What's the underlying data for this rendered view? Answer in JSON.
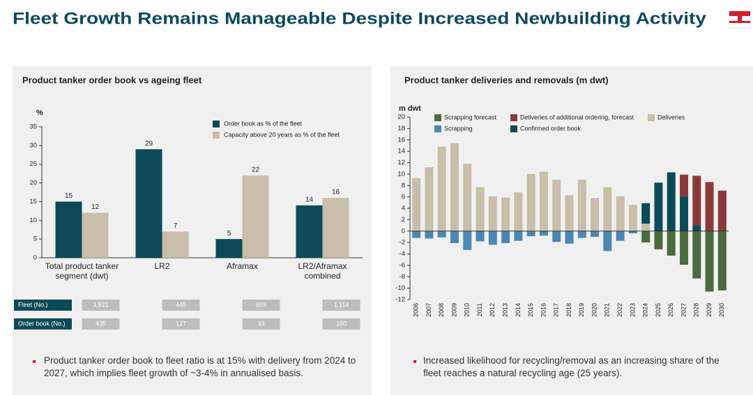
{
  "title": "Fleet Growth Remains Manageable Despite Increased Newbuilding Activity",
  "chart_data": [
    {
      "type": "bar",
      "title": "Product tanker order book vs ageing fleet",
      "ylabel": "%",
      "categories": [
        "Total product tanker segment (dwt)",
        "LR2",
        "Aframax",
        "LR2/Aframax combined"
      ],
      "series": [
        {
          "name": "Order book as % of the fleet",
          "color": "#0d4a57",
          "values": [
            15,
            29,
            5,
            14
          ]
        },
        {
          "name": "Capacity above 20 years as % of the fleet",
          "color": "#c8bea9",
          "values": [
            12,
            7,
            22,
            16
          ]
        }
      ],
      "ylim": [
        0,
        35
      ],
      "yticks": [
        0,
        5,
        10,
        15,
        20,
        25,
        30,
        35
      ],
      "grid": false,
      "legend": "top-right"
    },
    {
      "type": "stacked_bar",
      "title": "Product tanker deliveries and removals (m dwt)",
      "ylabel": "m dwt",
      "categories": [
        "2006",
        "2007",
        "2008",
        "2009",
        "2010",
        "2011",
        "2012",
        "2013",
        "2014",
        "2015",
        "2016",
        "2017",
        "2018",
        "2019",
        "2020",
        "2021",
        "2022",
        "2023",
        "2024",
        "2025",
        "2026",
        "2027",
        "2028",
        "2029",
        "2030"
      ],
      "series": [
        {
          "name": "Scrapping forecast",
          "color": "#4b6b3f",
          "values": [
            null,
            null,
            null,
            null,
            null,
            null,
            null,
            null,
            null,
            null,
            null,
            null,
            null,
            null,
            null,
            null,
            null,
            null,
            -2.0,
            -3.2,
            -4.3,
            -5.9,
            -8.3,
            -10.6,
            -10.4
          ]
        },
        {
          "name": "Deliveries of additional ordering, forecast",
          "color": "#8b3a3c",
          "values": [
            null,
            null,
            null,
            null,
            null,
            null,
            null,
            null,
            null,
            null,
            null,
            null,
            null,
            null,
            null,
            null,
            null,
            null,
            null,
            null,
            null,
            3.8,
            8.7,
            8.6,
            7.1
          ]
        },
        {
          "name": "Deliveries",
          "color": "#c8bea9",
          "values": [
            9.3,
            11.2,
            14.8,
            15.4,
            11.8,
            7.7,
            6.1,
            5.9,
            6.8,
            10.0,
            10.4,
            9.0,
            6.3,
            9.0,
            5.8,
            7.7,
            6.1,
            4.6,
            1.3,
            null,
            null,
            null,
            null,
            null,
            null
          ]
        },
        {
          "name": "Scrapping",
          "color": "#4a88b3",
          "values": [
            -1.2,
            -1.3,
            -1.1,
            -2.1,
            -3.3,
            -1.8,
            -2.4,
            -2.1,
            -1.7,
            -0.9,
            -0.8,
            -1.9,
            -2.2,
            -1.2,
            -1.0,
            -3.5,
            -1.7,
            -0.4,
            null,
            null,
            null,
            null,
            null,
            null,
            null
          ]
        },
        {
          "name": "Confirmed order book",
          "color": "#0d4a57",
          "values": [
            null,
            null,
            null,
            null,
            null,
            null,
            null,
            null,
            null,
            null,
            null,
            null,
            null,
            null,
            null,
            null,
            null,
            null,
            3.6,
            8.5,
            10.3,
            6.1,
            1.0,
            null,
            null
          ]
        }
      ],
      "ylim": [
        -12,
        20
      ],
      "yticks": [
        -12,
        -10,
        -8,
        -6,
        -4,
        -2,
        0,
        2,
        4,
        6,
        8,
        10,
        12,
        14,
        16,
        18,
        20
      ],
      "grid": false,
      "legend": "top"
    }
  ],
  "table": {
    "rows": [
      {
        "label": "Fleet (No.)",
        "values": [
          "3,521",
          "445",
          "669",
          "1,114"
        ]
      },
      {
        "label": "Order book (No.)",
        "values": [
          "435",
          "127",
          "33",
          "160"
        ]
      }
    ]
  },
  "bullets": [
    "Product tanker order book to fleet ratio is at 15% with delivery from 2024 to 2027, which implies fleet growth of ~3-4% in annualised basis.",
    "Increased likelihood for recycling/removal as an increasing share of the fleet reaches a natural recycling age (25 years)."
  ]
}
